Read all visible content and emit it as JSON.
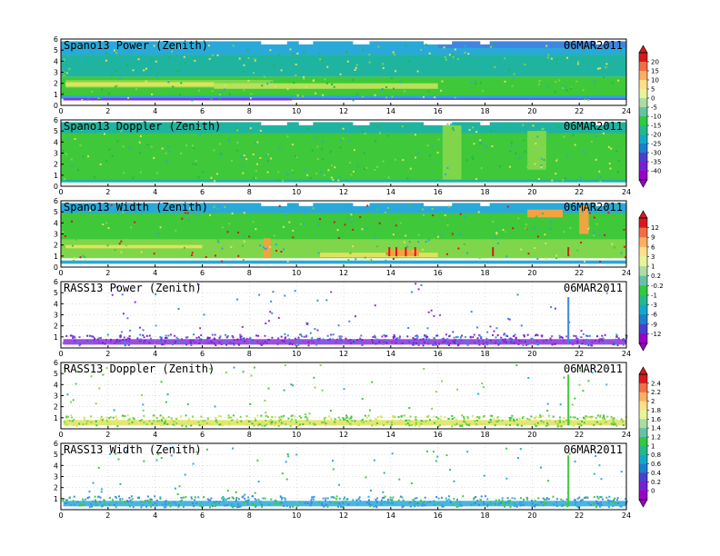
{
  "chart_data": [
    {
      "type": "heatmap",
      "title": "Spano13 Power (Zenith)",
      "date": "06MAR2011",
      "x_ticks": [
        "0",
        "2",
        "4",
        "6",
        "8",
        "10",
        "12",
        "14",
        "16",
        "18",
        "20",
        "22",
        "24"
      ],
      "y_ticks": [
        "0",
        "1",
        "2",
        "3",
        "4",
        "5",
        "6"
      ],
      "xlim": [
        0,
        24
      ],
      "ylim": [
        0,
        6
      ],
      "colorbar": "power",
      "profile": "power"
    },
    {
      "type": "heatmap",
      "title": "Spano13 Doppler (Zenith)",
      "date": "06MAR2011",
      "x_ticks": [
        "0",
        "2",
        "4",
        "6",
        "8",
        "10",
        "12",
        "14",
        "16",
        "18",
        "20",
        "22",
        "24"
      ],
      "y_ticks": [
        "0",
        "1",
        "2",
        "3",
        "4",
        "5",
        "6"
      ],
      "xlim": [
        0,
        24
      ],
      "ylim": [
        0,
        6
      ],
      "colorbar": "power",
      "profile": "doppler"
    },
    {
      "type": "heatmap",
      "title": "Spano13 Width (Zenith)",
      "date": "06MAR2011",
      "x_ticks": [
        "0",
        "2",
        "4",
        "6",
        "8",
        "10",
        "12",
        "14",
        "16",
        "18",
        "20",
        "22",
        "24"
      ],
      "y_ticks": [
        "0",
        "1",
        "2",
        "3",
        "4",
        "5",
        "6"
      ],
      "xlim": [
        0,
        24
      ],
      "ylim": [
        0,
        6
      ],
      "colorbar": "width",
      "profile": "width"
    },
    {
      "type": "heatmap",
      "title": "RASS13 Power (Zenith)",
      "date": "06MAR2011",
      "x_ticks": [
        "0",
        "2",
        "4",
        "6",
        "8",
        "10",
        "12",
        "14",
        "16",
        "18",
        "20",
        "22",
        "24"
      ],
      "y_ticks": [
        "1",
        "2",
        "3",
        "4",
        "5",
        "6"
      ],
      "xlim": [
        0,
        24
      ],
      "ylim": [
        0,
        6
      ],
      "colorbar": "width",
      "profile": "rass_power"
    },
    {
      "type": "heatmap",
      "title": "RASS13 Doppler (Zenith)",
      "date": "06MAR2011",
      "x_ticks": [
        "0",
        "2",
        "4",
        "6",
        "8",
        "10",
        "12",
        "14",
        "16",
        "18",
        "20",
        "22",
        "24"
      ],
      "y_ticks": [
        "1",
        "2",
        "3",
        "4",
        "5",
        "6"
      ],
      "xlim": [
        0,
        24
      ],
      "ylim": [
        0,
        6
      ],
      "colorbar": "rass",
      "profile": "rass_doppler"
    },
    {
      "type": "heatmap",
      "title": "RASS13 Width (Zenith)",
      "date": "06MAR2011",
      "x_ticks": [
        "0",
        "2",
        "4",
        "6",
        "8",
        "10",
        "12",
        "14",
        "16",
        "18",
        "20",
        "22",
        "24"
      ],
      "y_ticks": [
        "1",
        "2",
        "3",
        "4",
        "5",
        "6"
      ],
      "xlim": [
        0,
        24
      ],
      "ylim": [
        0,
        6
      ],
      "colorbar": "rass",
      "profile": "rass_width"
    }
  ],
  "colorbars": {
    "power": {
      "labels": [
        "20",
        "15",
        "10",
        "5",
        "0",
        "-5",
        "-10",
        "-15",
        "-20",
        "-25",
        "-30",
        "-35",
        "-40"
      ],
      "colors": [
        "#d7191c",
        "#f46d43",
        "#fdae61",
        "#fee08b",
        "#e6f598",
        "#abdda4",
        "#66c2a5",
        "#2ecc40",
        "#22bb88",
        "#11aacc",
        "#1b7fcf",
        "#4b3fd1",
        "#7a1fd6",
        "#9b00c8"
      ]
    },
    "width": {
      "labels": [
        "12",
        "9",
        "6",
        "3",
        "1",
        "0.2",
        "-0.2",
        "-1",
        "-3",
        "-6",
        "-9",
        "-12"
      ],
      "colors": [
        "#d7191c",
        "#f46d43",
        "#fdae61",
        "#fee08b",
        "#e6f598",
        "#abdda4",
        "#66c2a5",
        "#2ecc40",
        "#22bb88",
        "#11aacc",
        "#1b7fcf",
        "#4b3fd1",
        "#9b00c8"
      ]
    },
    "rass": {
      "labels": [
        "2.4",
        "2.2",
        "2",
        "1.8",
        "1.6",
        "1.4",
        "1.2",
        "1",
        "0.8",
        "0.6",
        "0.4",
        "0.2",
        "0"
      ],
      "colors": [
        "#d7191c",
        "#f46d43",
        "#fdae61",
        "#fee08b",
        "#e6f598",
        "#abdda4",
        "#66c2a5",
        "#2ecc40",
        "#22bb88",
        "#11aacc",
        "#1b7fcf",
        "#4b3fd1",
        "#7a1fd6",
        "#9b00c8"
      ]
    }
  }
}
